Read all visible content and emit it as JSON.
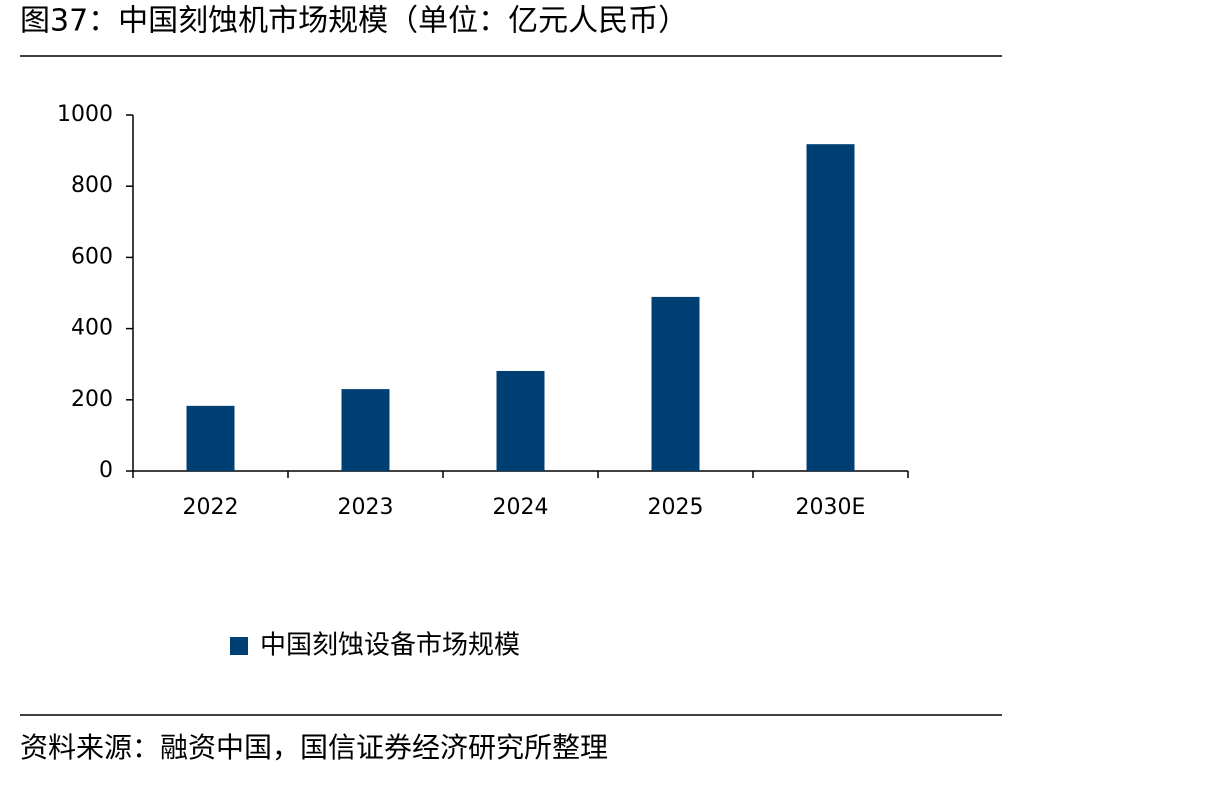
{
  "chart_data": {
    "type": "bar",
    "title": "图37：中国刻蚀机市场规模（单位：亿元人民币）",
    "categories": [
      "2022",
      "2023",
      "2024",
      "2025",
      "2030E"
    ],
    "series": [
      {
        "name": "中国刻蚀设备市场规模",
        "color": "#003f73",
        "values": [
          183,
          230,
          281,
          489,
          918
        ]
      }
    ],
    "ylim": [
      0,
      1000
    ],
    "yticks": [
      0,
      200,
      400,
      600,
      800,
      1000
    ],
    "legend": "bottom",
    "source": "资料来源：融资中国，国信证券经济研究所整理"
  }
}
